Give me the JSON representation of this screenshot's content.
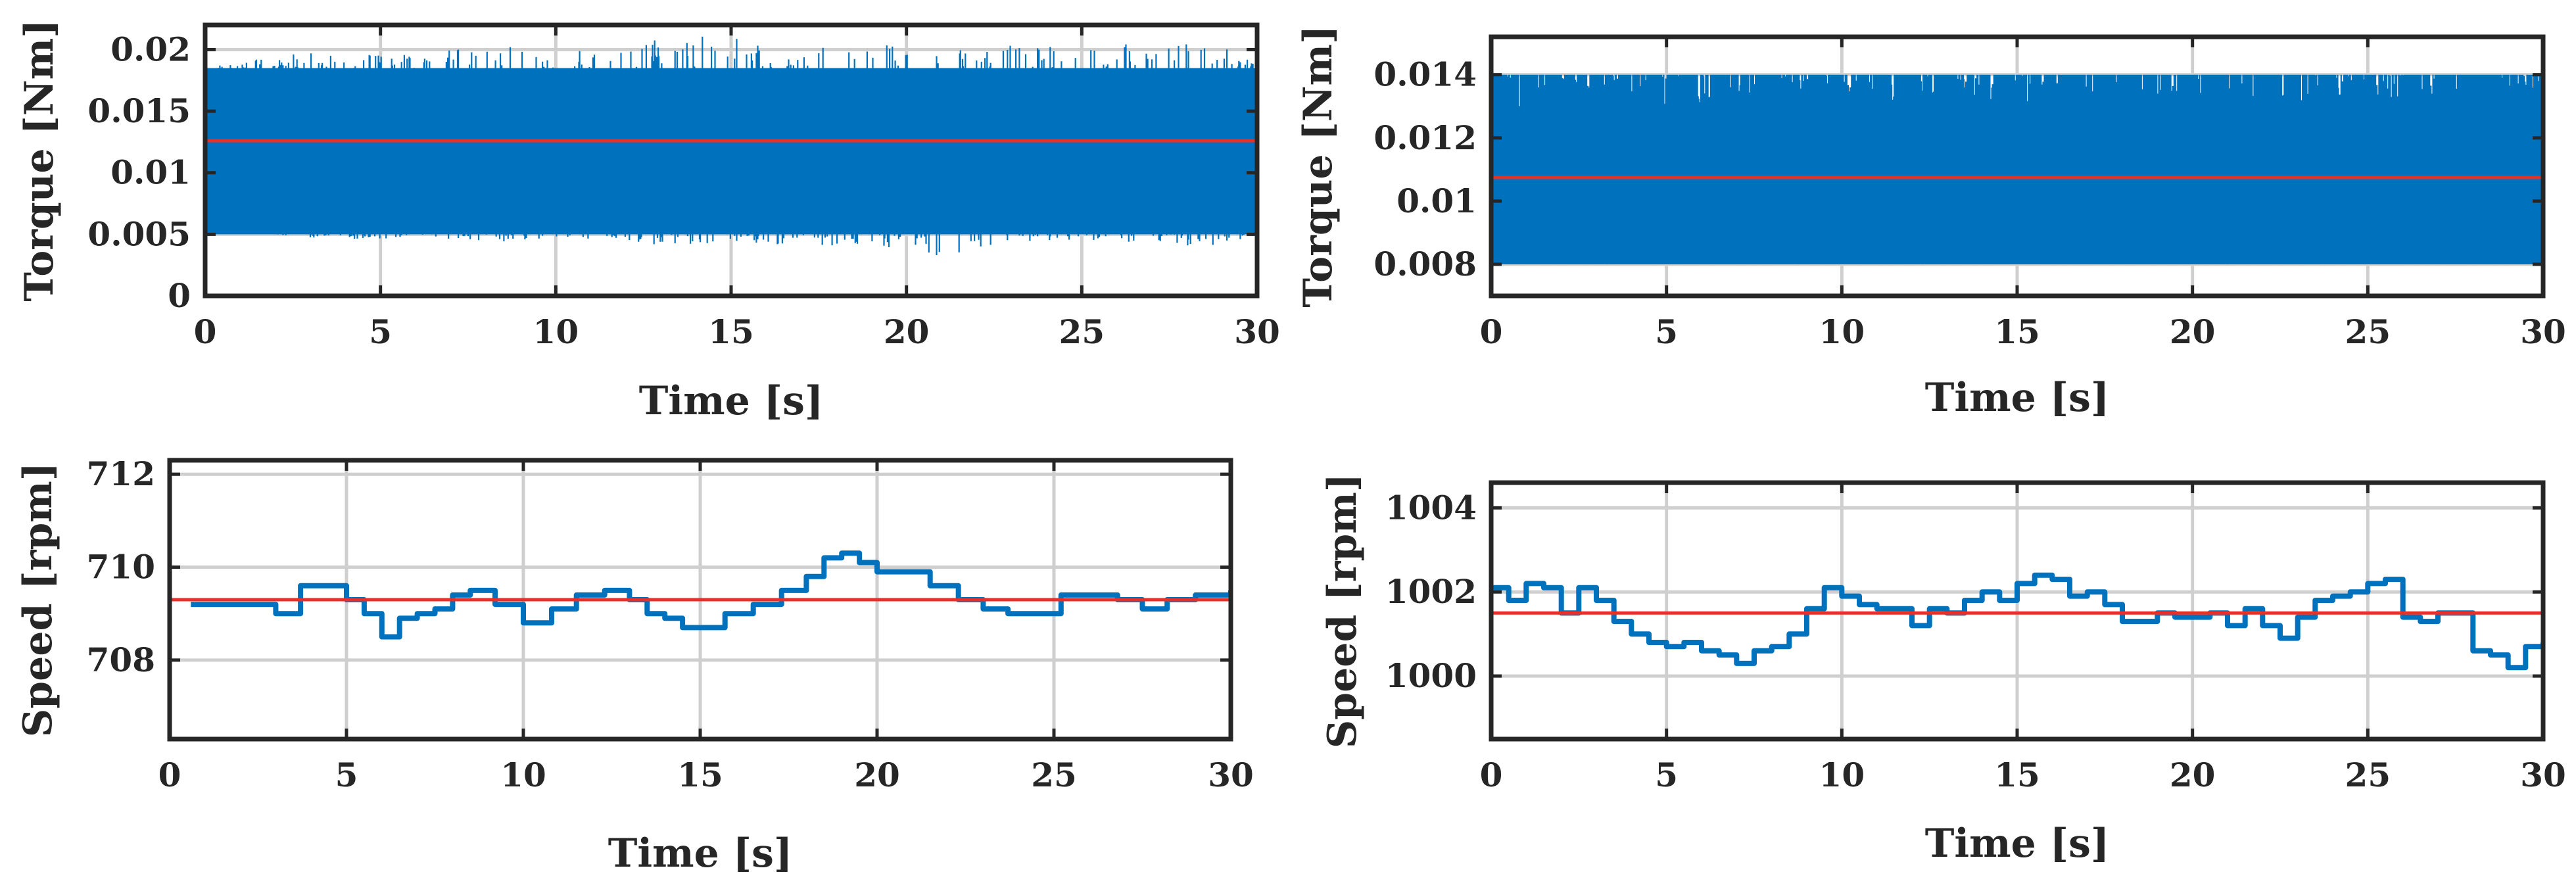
{
  "figure": {
    "colors": {
      "signal": "#0072BD",
      "mean": "#E8302A",
      "axis": "#262626",
      "grid": "#CFCFCF"
    }
  },
  "chart_data": [
    {
      "type": "line",
      "id": "torque_left",
      "title": "",
      "xlabel": "Time [s]",
      "ylabel": "Torque [Nm]",
      "xlim": [
        0,
        30
      ],
      "ylim": [
        0,
        0.022
      ],
      "xticks": [
        0,
        5,
        10,
        15,
        20,
        25,
        30
      ],
      "xtick_labels": [
        "0",
        "5",
        "10",
        "15",
        "20",
        "25",
        "30"
      ],
      "yticks": [
        0,
        0.005,
        0.01,
        0.015,
        0.02
      ],
      "ytick_labels": [
        "0",
        "0.005",
        "0.01",
        "0.015",
        "0.02"
      ],
      "grid": true,
      "series": [
        {
          "name": "signal",
          "style": "dense",
          "core": [
            0.0075,
            0.0175
          ],
          "band_low": 0.005,
          "band_high": 0.0185,
          "x": [
            0,
            2,
            4,
            6,
            8,
            10,
            12,
            13.5,
            15,
            17,
            19,
            21,
            23,
            25,
            27,
            29,
            30
          ],
          "min": [
            0.0062,
            0.005,
            0.0045,
            0.0048,
            0.0042,
            0.0048,
            0.0044,
            0.004,
            0.0045,
            0.004,
            0.0042,
            0.003,
            0.0044,
            0.0046,
            0.0042,
            0.004,
            0.005
          ],
          "max": [
            0.0185,
            0.0195,
            0.02,
            0.0195,
            0.0205,
            0.0198,
            0.0205,
            0.0215,
            0.021,
            0.0205,
            0.0205,
            0.02,
            0.0205,
            0.0203,
            0.0205,
            0.0205,
            0.019
          ]
        },
        {
          "name": "mean",
          "x": [
            0,
            30
          ],
          "y": [
            0.0126,
            0.0126
          ]
        }
      ]
    },
    {
      "type": "line",
      "id": "torque_right",
      "title": "",
      "xlabel": "Time [s]",
      "ylabel": "Torque [Nm]",
      "xlim": [
        0,
        30
      ],
      "ylim": [
        0.007,
        0.0152
      ],
      "xticks": [
        0,
        5,
        10,
        15,
        20,
        25,
        30
      ],
      "xtick_labels": [
        "0",
        "5",
        "10",
        "15",
        "20",
        "25",
        "30"
      ],
      "yticks": [
        0.008,
        0.01,
        0.012,
        0.014
      ],
      "ytick_labels": [
        "0.008",
        "0.01",
        "0.012",
        "0.014"
      ],
      "grid": true,
      "series": [
        {
          "name": "signal",
          "style": "dense",
          "core": [
            0.008,
            0.013
          ],
          "band_low": 0.008,
          "band_high": 0.014,
          "x": [
            0,
            30
          ],
          "min": [
            0.008,
            0.008
          ],
          "max": [
            0.014,
            0.014
          ]
        },
        {
          "name": "mean",
          "x": [
            0,
            30
          ],
          "y": [
            0.01075,
            0.01075
          ]
        }
      ]
    },
    {
      "type": "line",
      "id": "speed_left",
      "title": "",
      "xlabel": "Time [s]",
      "ylabel": "Speed [rpm]",
      "xlim": [
        0,
        30
      ],
      "ylim": [
        706.3,
        712.3
      ],
      "xticks": [
        0,
        5,
        10,
        15,
        20,
        25,
        30
      ],
      "xtick_labels": [
        "0",
        "5",
        "10",
        "15",
        "20",
        "25",
        "30"
      ],
      "yticks": [
        708,
        710,
        712
      ],
      "ytick_labels": [
        "708",
        "710",
        "712"
      ],
      "grid": true,
      "series": [
        {
          "name": "signal",
          "style": "step",
          "x": [
            0.6,
            1.5,
            2.2,
            3.0,
            3.7,
            4.5,
            5.0,
            5.5,
            6.0,
            6.5,
            7.0,
            7.5,
            8.0,
            8.5,
            9.2,
            10.0,
            10.8,
            11.5,
            12.3,
            13.0,
            13.5,
            14.0,
            14.5,
            15.0,
            15.7,
            16.5,
            17.3,
            18.0,
            18.5,
            19.0,
            19.5,
            20.0,
            20.7,
            21.5,
            22.3,
            23.0,
            23.7,
            24.5,
            25.2,
            26.0,
            26.8,
            27.5,
            28.2,
            29.0,
            30.0
          ],
          "y": [
            709.2,
            709.2,
            709.2,
            709.0,
            709.6,
            709.6,
            709.3,
            709.0,
            708.5,
            708.9,
            709.0,
            709.1,
            709.4,
            709.5,
            709.2,
            708.8,
            709.1,
            709.4,
            709.5,
            709.3,
            709.0,
            708.9,
            708.7,
            708.7,
            709.0,
            709.2,
            709.5,
            709.8,
            710.2,
            710.3,
            710.1,
            709.9,
            709.9,
            709.6,
            709.3,
            709.1,
            709.0,
            709.0,
            709.4,
            709.4,
            709.3,
            709.1,
            709.3,
            709.4,
            709.5
          ]
        },
        {
          "name": "mean",
          "x": [
            0,
            30
          ],
          "y": [
            709.3,
            709.3
          ]
        }
      ]
    },
    {
      "type": "line",
      "id": "speed_right",
      "title": "",
      "xlabel": "Time [s]",
      "ylabel": "Speed [rpm]",
      "xlim": [
        0,
        30
      ],
      "ylim": [
        998.5,
        1004.6
      ],
      "xticks": [
        0,
        5,
        10,
        15,
        20,
        25,
        30
      ],
      "xtick_labels": [
        "0",
        "5",
        "10",
        "15",
        "20",
        "25",
        "30"
      ],
      "yticks": [
        1000,
        1002,
        1004
      ],
      "ytick_labels": [
        "1000",
        "1002",
        "1004"
      ],
      "grid": true,
      "series": [
        {
          "name": "signal",
          "style": "step",
          "x": [
            0,
            0.5,
            1.0,
            1.5,
            2.0,
            2.5,
            3.0,
            3.5,
            4.0,
            4.5,
            5.0,
            5.5,
            6.0,
            6.5,
            7.0,
            7.5,
            8.0,
            8.5,
            9.0,
            9.5,
            10.0,
            10.5,
            11.0,
            11.5,
            12.0,
            12.5,
            13.0,
            13.5,
            14.0,
            14.5,
            15.0,
            15.5,
            16.0,
            16.5,
            17.0,
            17.5,
            18.0,
            18.5,
            19.0,
            19.5,
            20.0,
            20.5,
            21.0,
            21.5,
            22.0,
            22.5,
            23.0,
            23.5,
            24.0,
            24.5,
            25.0,
            25.5,
            26.0,
            26.5,
            27.0,
            27.5,
            28.0,
            28.5,
            29.0,
            29.5,
            30.0
          ],
          "y": [
            1002.1,
            1001.8,
            1002.2,
            1002.1,
            1001.5,
            1002.1,
            1001.8,
            1001.3,
            1001.0,
            1000.8,
            1000.7,
            1000.8,
            1000.6,
            1000.5,
            1000.3,
            1000.6,
            1000.7,
            1001.0,
            1001.6,
            1002.1,
            1001.9,
            1001.7,
            1001.6,
            1001.6,
            1001.2,
            1001.6,
            1001.5,
            1001.8,
            1002.0,
            1001.8,
            1002.2,
            1002.4,
            1002.3,
            1001.9,
            1002.0,
            1001.7,
            1001.3,
            1001.3,
            1001.5,
            1001.4,
            1001.4,
            1001.5,
            1001.2,
            1001.6,
            1001.2,
            1000.9,
            1001.4,
            1001.8,
            1001.9,
            1002.0,
            1002.2,
            1002.3,
            1001.4,
            1001.3,
            1001.5,
            1001.5,
            1000.6,
            1000.5,
            1000.2,
            1000.7,
            1000.8
          ]
        },
        {
          "name": "mean",
          "x": [
            0,
            30
          ],
          "y": [
            1001.5,
            1001.5
          ]
        }
      ]
    }
  ]
}
